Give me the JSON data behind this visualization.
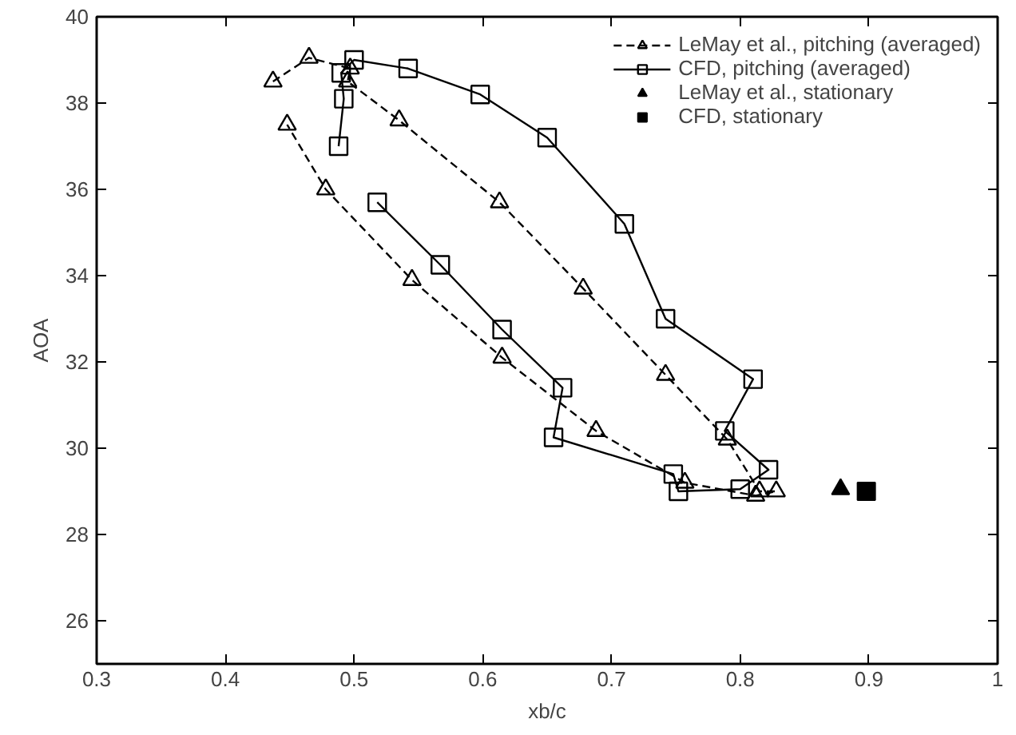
{
  "chart_data": {
    "type": "line",
    "xlabel": "xb/c",
    "ylabel": "AOA",
    "xlim": [
      0.3,
      1
    ],
    "ylim": [
      25,
      40
    ],
    "xticks": [
      0.3,
      0.4,
      0.5,
      0.6,
      0.7,
      0.8,
      0.9,
      1
    ],
    "yticks": [
      26,
      28,
      30,
      32,
      34,
      36,
      38,
      40
    ],
    "grid": false,
    "legend": "top right",
    "series": [
      {
        "name": "LeMay et al., pitching (averaged)",
        "marker": "triangle",
        "line_style": "dashed",
        "color": "#000000",
        "x": [
          0.437,
          0.465,
          0.497,
          0.495,
          0.535,
          0.613,
          0.678,
          0.742,
          0.79,
          0.815,
          0.828,
          0.812,
          0.757,
          0.688,
          0.615,
          0.545,
          0.478,
          0.448
        ],
        "values": [
          38.5,
          39.05,
          38.8,
          38.5,
          37.6,
          35.7,
          33.7,
          31.7,
          30.2,
          29.0,
          29.0,
          28.9,
          29.2,
          30.4,
          32.1,
          33.9,
          36.0,
          37.5
        ]
      },
      {
        "name": "CFD, pitching (averaged)",
        "marker": "square",
        "line_style": "solid",
        "color": "#000000",
        "x": [
          0.488,
          0.492,
          0.49,
          0.5,
          0.542,
          0.598,
          0.65,
          0.71,
          0.742,
          0.81,
          0.788,
          0.822,
          0.8,
          0.752,
          0.748,
          0.655,
          0.662,
          0.615,
          0.567,
          0.518
        ],
        "values": [
          37.0,
          38.1,
          38.7,
          39.0,
          38.8,
          38.2,
          37.2,
          35.2,
          33.0,
          31.6,
          30.4,
          29.5,
          29.05,
          29.0,
          29.4,
          30.25,
          31.4,
          32.75,
          34.25,
          35.7
        ]
      },
      {
        "name": "LeMay et al., stationary",
        "type": "scatter",
        "marker": "triangle",
        "color": "#000000",
        "x": [
          0.878
        ],
        "values": [
          29.05
        ]
      },
      {
        "name": "CFD, stationary",
        "type": "scatter",
        "marker": "square",
        "color": "#000000",
        "x": [
          0.898
        ],
        "values": [
          29.0
        ]
      }
    ]
  }
}
